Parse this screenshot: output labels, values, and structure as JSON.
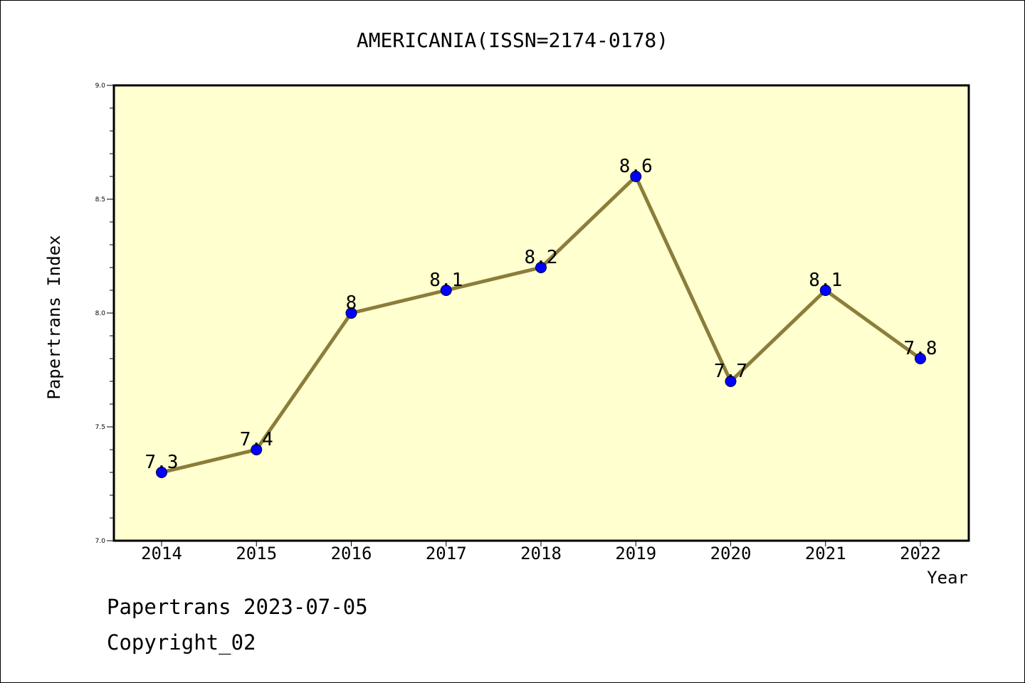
{
  "colors": {
    "plot_background": "#ffffd0",
    "line": "#8b7d3a",
    "marker": "#0000ff",
    "axis": "#000000"
  },
  "footer": {
    "line1": "Papertrans 2023-07-05",
    "line2": "Copyright_02"
  },
  "chart_data": {
    "type": "line",
    "title": "AMERICANIA(ISSN=2174-0178)",
    "xlabel": "Year",
    "ylabel": "Papertrans Index",
    "categories": [
      "2014",
      "2015",
      "2016",
      "2017",
      "2018",
      "2019",
      "2020",
      "2021",
      "2022"
    ],
    "values": [
      7.3,
      7.4,
      8.0,
      8.1,
      8.2,
      8.6,
      7.7,
      8.1,
      7.8
    ],
    "data_labels": [
      "7.3",
      "7.4",
      "8",
      "8.1",
      "8.2",
      "8.6",
      "7.7",
      "8.1",
      "7.8"
    ],
    "ylim": [
      7.0,
      9.0
    ],
    "yticks": [
      "7.0",
      "7.5",
      "8.0",
      "8.5",
      "9.0"
    ],
    "ytick_values": [
      7.0,
      7.5,
      8.0,
      8.5,
      9.0
    ],
    "grid": false,
    "legend": "none"
  }
}
